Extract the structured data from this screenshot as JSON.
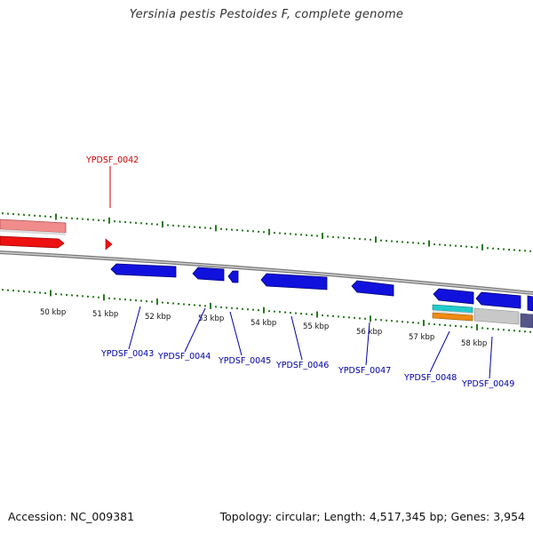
{
  "title": "Yersinia pestis Pestoides F, complete genome",
  "footer": {
    "accession": "Accession: NC_009381",
    "summary": "Topology: circular; Length: 4,517,345 bp; Genes: 3,954"
  },
  "colors": {
    "backbone": "#8a8a8a",
    "tick": "#2b7a1e",
    "forward_gene": "#ee1111",
    "forward_light": "#f08c8c",
    "reverse_gene": "#1111dd",
    "label_forward": "#cc0000",
    "label_reverse": "#0000aa",
    "cyan": "#22cccc",
    "orange": "#ee8a11",
    "grey": "#c8c8c8",
    "slate": "#55558a"
  },
  "scale_labels": [
    "50 kbp",
    "51 kbp",
    "52 kbp",
    "53 kbp",
    "54 kbp",
    "55 kbp",
    "56 kbp",
    "57 kbp",
    "58 kbp"
  ],
  "gene_labels": [
    {
      "id": "YPDSF_0042",
      "strand": "forward"
    },
    {
      "id": "YPDSF_0043",
      "strand": "reverse"
    },
    {
      "id": "YPDSF_0044",
      "strand": "reverse"
    },
    {
      "id": "YPDSF_0045",
      "strand": "reverse"
    },
    {
      "id": "YPDSF_0046",
      "strand": "reverse"
    },
    {
      "id": "YPDSF_0047",
      "strand": "reverse"
    },
    {
      "id": "YPDSF_0048",
      "strand": "reverse"
    },
    {
      "id": "YPDSF_0049",
      "strand": "reverse"
    }
  ]
}
